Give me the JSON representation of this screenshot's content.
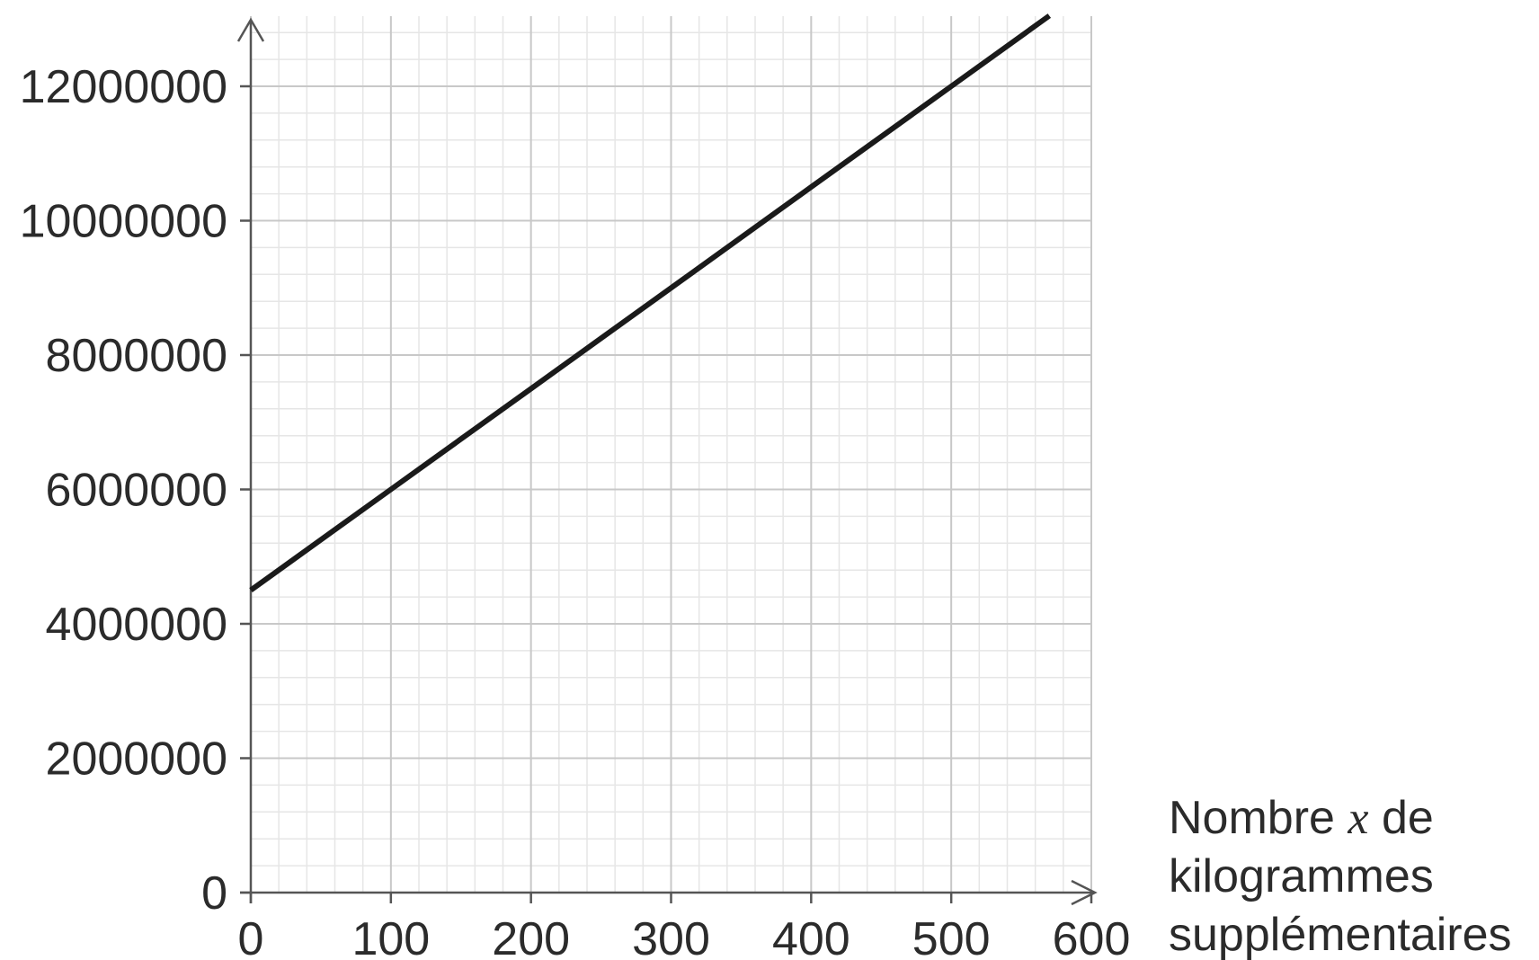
{
  "chart_data": {
    "type": "line",
    "title": "",
    "xlabel": {
      "line1_before": "Nombre ",
      "line1_var": "x",
      "line1_after": " de",
      "line2": "kilogrammes",
      "line3": "supplémentaires"
    },
    "ylabel": "",
    "xlim": [
      0,
      600
    ],
    "ylim": [
      0,
      13000000
    ],
    "x_ticks": [
      0,
      100,
      200,
      300,
      400,
      500,
      600
    ],
    "x_tick_labels": [
      "0",
      "100",
      "200",
      "300",
      "400",
      "500",
      "600"
    ],
    "y_ticks": [
      0,
      2000000,
      4000000,
      6000000,
      8000000,
      10000000,
      12000000
    ],
    "y_tick_labels": [
      "0",
      "2000000",
      "4000000",
      "6000000",
      "8000000",
      "10000000",
      "12000000"
    ],
    "grid": true,
    "grid_minor_per_major_x": 5,
    "grid_minor_per_major_y": 5,
    "series": [
      {
        "x": [
          0,
          100,
          200,
          300,
          400,
          500,
          570
        ],
        "y": [
          4500000,
          6000000,
          7500000,
          9000000,
          10500000,
          12000000,
          13050000
        ],
        "color": "#1a1a1a"
      }
    ],
    "colors": {
      "major_grid": "#c8c8c8",
      "minor_grid": "#e6e6e6",
      "axis": "#555555",
      "line": "#1a1a1a"
    }
  }
}
